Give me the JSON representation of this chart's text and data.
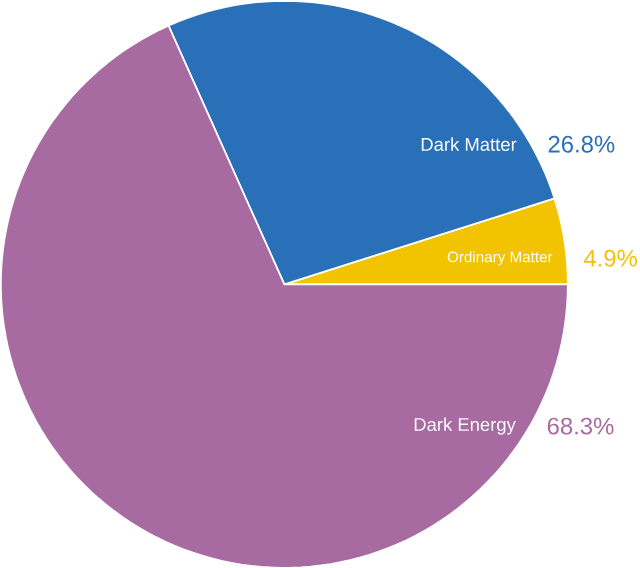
{
  "chart_data": {
    "type": "pie",
    "categories": [
      "Ordinary Matter",
      "Dark Matter",
      "Dark Energy"
    ],
    "values": [
      4.9,
      26.8,
      68.3
    ],
    "colors": [
      "#f2c300",
      "#2a70b8",
      "#a76aa1"
    ],
    "value_labels": [
      "4.9%",
      "26.8%",
      "68.3%"
    ]
  }
}
